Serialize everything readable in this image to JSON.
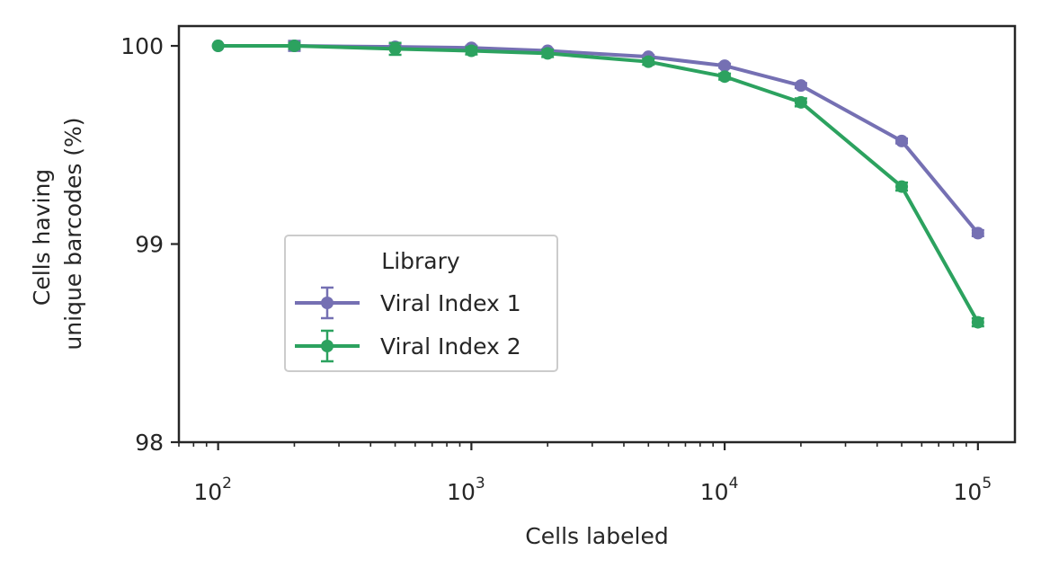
{
  "chart_data": {
    "type": "line",
    "xscale": "log",
    "xlabel": "Cells labeled",
    "ylabel_lines": [
      "Cells having",
      "unique barcodes (%)"
    ],
    "xlim": [
      70,
      140000
    ],
    "ylim": [
      98,
      100.1
    ],
    "x_ticks": [
      100,
      1000,
      10000,
      100000
    ],
    "x_tick_labels": [
      {
        "base": "10",
        "exp": "2"
      },
      {
        "base": "10",
        "exp": "3"
      },
      {
        "base": "10",
        "exp": "4"
      },
      {
        "base": "10",
        "exp": "5"
      }
    ],
    "y_ticks": [
      98,
      99,
      100
    ],
    "y_tick_labels": [
      "98",
      "99",
      "100"
    ],
    "x": [
      100,
      200,
      500,
      1000,
      2000,
      5000,
      10000,
      20000,
      50000,
      100000
    ],
    "series": [
      {
        "name": "Viral Index 1",
        "color": "#7570b3",
        "values": [
          100.0,
          100.0,
          99.995,
          99.99,
          99.975,
          99.945,
          99.9,
          99.8,
          99.52,
          99.055
        ],
        "errors": [
          0.0,
          0.025,
          0.012,
          0.01,
          0.008,
          0.008,
          0.01,
          0.012,
          0.012,
          0.015
        ]
      },
      {
        "name": "Viral Index 2",
        "color": "#2ca25f",
        "values": [
          100.0,
          100.0,
          99.985,
          99.975,
          99.962,
          99.92,
          99.845,
          99.715,
          99.29,
          98.605
        ],
        "errors": [
          0.0,
          0.015,
          0.03,
          0.018,
          0.018,
          0.015,
          0.015,
          0.02,
          0.02,
          0.02
        ]
      }
    ],
    "legend": {
      "title": "Library",
      "placement": "center-left"
    },
    "grid": false
  }
}
